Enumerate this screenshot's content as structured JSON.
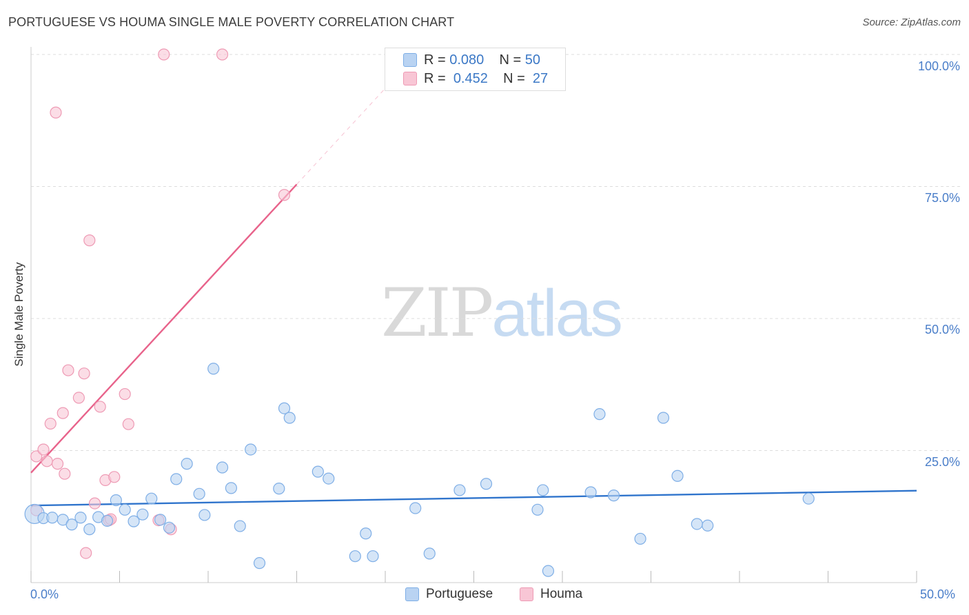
{
  "title": "PORTUGUESE VS HOUMA SINGLE MALE POVERTY CORRELATION CHART",
  "source": "Source: ZipAtlas.com",
  "watermark": {
    "zip": "ZIP",
    "atlas": "atlas"
  },
  "colors": {
    "portuguese_fill": "#b9d3f2",
    "portuguese_stroke": "#7eaee6",
    "portuguese_line": "#2f74cc",
    "houma_fill": "#f8c6d5",
    "houma_stroke": "#ee9ab4",
    "houma_line": "#e8638b",
    "axis_text": "#4a7ec9",
    "grid": "#dddddd"
  },
  "legend": {
    "portuguese": {
      "r_label": "R =",
      "r_value": "0.080",
      "n_label": "N =",
      "n_value": "50",
      "name": "Portuguese"
    },
    "houma": {
      "r_label": "R =",
      "r_value": "0.452",
      "n_label": "N =",
      "n_value": "27",
      "name": "Houma"
    }
  },
  "chart_data": {
    "type": "scatter",
    "title": "PORTUGUESE VS HOUMA SINGLE MALE POVERTY CORRELATION CHART",
    "xlabel": "",
    "ylabel": "Single Male Poverty",
    "xlim": [
      0,
      50
    ],
    "ylim": [
      0,
      100
    ],
    "x_tick_labels": [
      "0.0%",
      "50.0%"
    ],
    "y_tick_labels": [
      "100.0%",
      "75.0%",
      "50.0%",
      "25.0%"
    ],
    "y_tick_values": [
      100,
      75,
      50,
      25
    ],
    "grid": true,
    "legend_position": "top-center",
    "series": [
      {
        "name": "Portuguese",
        "R": 0.08,
        "N": 50,
        "trend": {
          "x": [
            0,
            50
          ],
          "y": [
            14.6,
            17.4
          ]
        },
        "points": [
          {
            "x": 0.2,
            "y": 13.0,
            "big": true
          },
          {
            "x": 0.7,
            "y": 12.2
          },
          {
            "x": 1.2,
            "y": 12.3
          },
          {
            "x": 1.8,
            "y": 11.9
          },
          {
            "x": 2.3,
            "y": 11.0
          },
          {
            "x": 2.8,
            "y": 12.3
          },
          {
            "x": 3.3,
            "y": 10.1
          },
          {
            "x": 3.8,
            "y": 12.4
          },
          {
            "x": 4.3,
            "y": 11.7
          },
          {
            "x": 4.8,
            "y": 15.6
          },
          {
            "x": 5.3,
            "y": 13.8
          },
          {
            "x": 5.8,
            "y": 11.6
          },
          {
            "x": 6.3,
            "y": 12.9
          },
          {
            "x": 6.8,
            "y": 15.9
          },
          {
            "x": 7.3,
            "y": 11.9
          },
          {
            "x": 7.8,
            "y": 10.4
          },
          {
            "x": 8.2,
            "y": 19.6
          },
          {
            "x": 8.8,
            "y": 22.5
          },
          {
            "x": 9.5,
            "y": 16.8
          },
          {
            "x": 9.8,
            "y": 12.8
          },
          {
            "x": 10.3,
            "y": 40.5
          },
          {
            "x": 10.8,
            "y": 21.8
          },
          {
            "x": 11.3,
            "y": 17.9
          },
          {
            "x": 11.8,
            "y": 10.7
          },
          {
            "x": 12.4,
            "y": 25.2
          },
          {
            "x": 12.9,
            "y": 3.7
          },
          {
            "x": 14.0,
            "y": 17.8
          },
          {
            "x": 14.3,
            "y": 33.0
          },
          {
            "x": 14.6,
            "y": 31.2
          },
          {
            "x": 16.2,
            "y": 21.0
          },
          {
            "x": 16.8,
            "y": 19.7
          },
          {
            "x": 18.3,
            "y": 5.0
          },
          {
            "x": 18.9,
            "y": 9.3
          },
          {
            "x": 19.3,
            "y": 5.0
          },
          {
            "x": 21.7,
            "y": 14.1
          },
          {
            "x": 22.5,
            "y": 5.5
          },
          {
            "x": 24.2,
            "y": 17.5
          },
          {
            "x": 25.7,
            "y": 18.7
          },
          {
            "x": 28.6,
            "y": 13.8
          },
          {
            "x": 28.9,
            "y": 17.5
          },
          {
            "x": 29.2,
            "y": 2.2
          },
          {
            "x": 31.6,
            "y": 17.1
          },
          {
            "x": 32.1,
            "y": 31.9
          },
          {
            "x": 32.9,
            "y": 16.5
          },
          {
            "x": 34.4,
            "y": 8.3
          },
          {
            "x": 35.7,
            "y": 31.2
          },
          {
            "x": 36.5,
            "y": 20.2
          },
          {
            "x": 37.6,
            "y": 11.1
          },
          {
            "x": 38.2,
            "y": 10.8
          },
          {
            "x": 43.9,
            "y": 15.9
          }
        ]
      },
      {
        "name": "Houma",
        "R": 0.452,
        "N": 27,
        "trend": {
          "x": [
            0,
            15
          ],
          "y": [
            20.8,
            75.4
          ]
        },
        "trend_dashed": {
          "x": [
            15,
            20.8
          ],
          "y": [
            75.4,
            96.5
          ]
        },
        "points": [
          {
            "x": 0.3,
            "y": 13.7
          },
          {
            "x": 0.3,
            "y": 23.9
          },
          {
            "x": 0.7,
            "y": 25.2
          },
          {
            "x": 0.9,
            "y": 23.0
          },
          {
            "x": 1.1,
            "y": 30.1
          },
          {
            "x": 1.4,
            "y": 89.0
          },
          {
            "x": 1.5,
            "y": 22.5
          },
          {
            "x": 1.8,
            "y": 32.1
          },
          {
            "x": 1.9,
            "y": 20.6
          },
          {
            "x": 2.1,
            "y": 40.2
          },
          {
            "x": 2.7,
            "y": 35.0
          },
          {
            "x": 3.0,
            "y": 39.6
          },
          {
            "x": 3.1,
            "y": 5.6
          },
          {
            "x": 3.3,
            "y": 64.8
          },
          {
            "x": 3.6,
            "y": 15.0
          },
          {
            "x": 3.9,
            "y": 33.3
          },
          {
            "x": 4.2,
            "y": 19.4
          },
          {
            "x": 4.4,
            "y": 11.8
          },
          {
            "x": 4.7,
            "y": 20.0
          },
          {
            "x": 5.3,
            "y": 35.7
          },
          {
            "x": 5.5,
            "y": 30.0
          },
          {
            "x": 7.2,
            "y": 11.8
          },
          {
            "x": 7.5,
            "y": 100.0
          },
          {
            "x": 7.9,
            "y": 10.1
          },
          {
            "x": 10.8,
            "y": 100.0
          },
          {
            "x": 14.3,
            "y": 73.4
          },
          {
            "x": 4.5,
            "y": 12.0
          }
        ]
      }
    ]
  }
}
